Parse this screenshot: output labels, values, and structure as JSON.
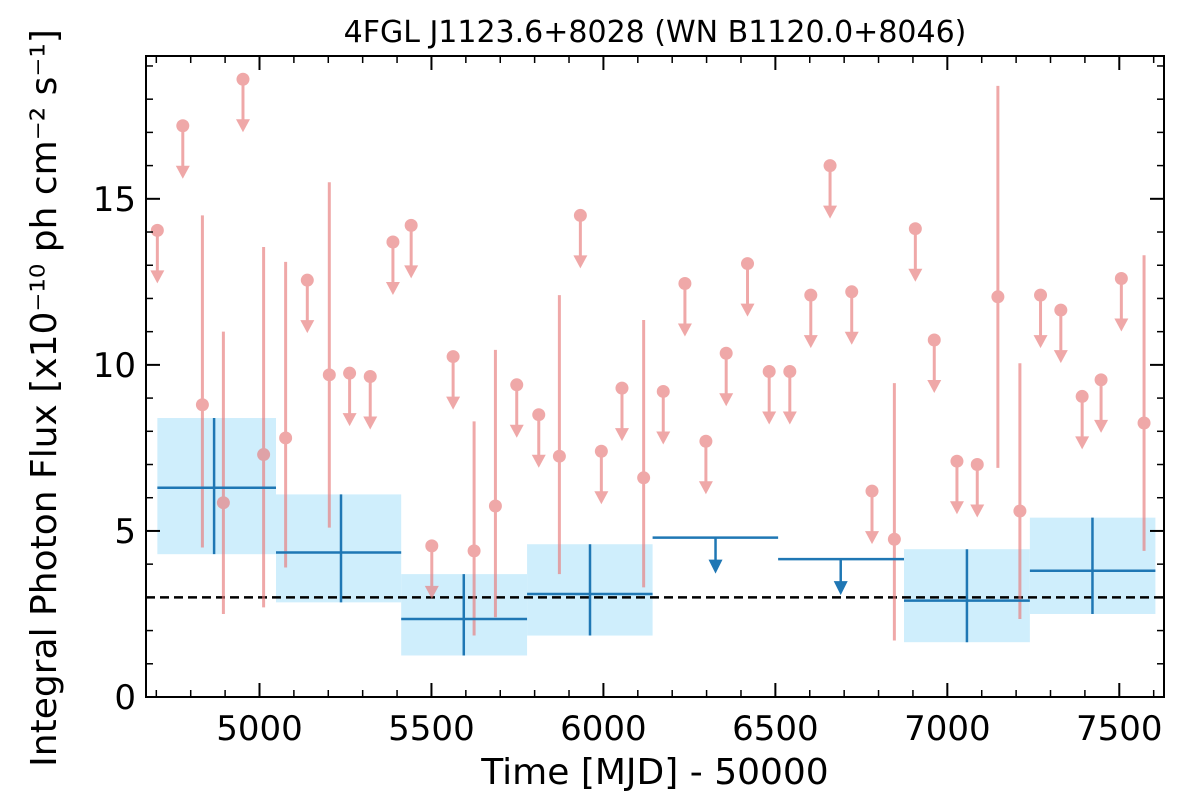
{
  "chart_data": {
    "type": "scatter",
    "title": "4FGL J1123.6+8028 (WN B1120.0+8046)",
    "xlabel": "Time [MJD] - 50000",
    "ylabel": "Integral Photon Flux [x10⁻¹⁰ ph cm⁻² s⁻¹]",
    "xlim": [
      4670,
      7630
    ],
    "ylim": [
      0,
      19.3
    ],
    "xticks": [
      5000,
      5500,
      6000,
      6500,
      7000,
      7500
    ],
    "xtick_labels": [
      "5000",
      "5500",
      "6000",
      "6500",
      "7000",
      "7500"
    ],
    "yticks": [
      0,
      5,
      10,
      15
    ],
    "ytick_labels": [
      "0",
      "5",
      "10",
      "15"
    ],
    "grid": false,
    "reference_line": {
      "y": 3.0,
      "style": "dashed",
      "color": "#000000"
    },
    "colors": {
      "short_bins": "#e87b7b",
      "long_bins": "#1f77b4",
      "long_band": "#cfeefc"
    },
    "series": [
      {
        "bin": "short",
        "upper_limits": [
          {
            "x": 4703,
            "y": 14.05
          },
          {
            "x": 4777,
            "y": 17.2
          },
          {
            "x": 4952,
            "y": 18.6
          },
          {
            "x": 5139,
            "y": 12.55
          },
          {
            "x": 5262,
            "y": 9.75
          },
          {
            "x": 5322,
            "y": 9.65
          },
          {
            "x": 5388,
            "y": 13.7
          },
          {
            "x": 5441,
            "y": 14.2
          },
          {
            "x": 5501,
            "y": 4.55
          },
          {
            "x": 5563,
            "y": 10.25
          },
          {
            "x": 5748,
            "y": 9.4
          },
          {
            "x": 5812,
            "y": 8.5
          },
          {
            "x": 5933,
            "y": 14.5
          },
          {
            "x": 5994,
            "y": 7.4
          },
          {
            "x": 6054,
            "y": 9.3
          },
          {
            "x": 6174,
            "y": 9.2
          },
          {
            "x": 6237,
            "y": 12.45
          },
          {
            "x": 6298,
            "y": 7.7
          },
          {
            "x": 6357,
            "y": 10.35
          },
          {
            "x": 6419,
            "y": 13.05
          },
          {
            "x": 6482,
            "y": 9.8
          },
          {
            "x": 6542,
            "y": 9.8
          },
          {
            "x": 6603,
            "y": 12.1
          },
          {
            "x": 6659,
            "y": 16.0
          },
          {
            "x": 6722,
            "y": 12.2
          },
          {
            "x": 6781,
            "y": 6.2
          },
          {
            "x": 6907,
            "y": 14.1
          },
          {
            "x": 6962,
            "y": 10.75
          },
          {
            "x": 7028,
            "y": 7.1
          },
          {
            "x": 7087,
            "y": 7.0
          },
          {
            "x": 7271,
            "y": 12.1
          },
          {
            "x": 7330,
            "y": 11.65
          },
          {
            "x": 7392,
            "y": 9.05
          },
          {
            "x": 7447,
            "y": 9.55
          },
          {
            "x": 7506,
            "y": 12.6
          }
        ],
        "detections": [
          {
            "x": 4834,
            "y": 8.8,
            "ylow": 4.5,
            "yhigh": 14.5
          },
          {
            "x": 4895,
            "y": 5.85,
            "ylow": 2.5,
            "yhigh": 11.0
          },
          {
            "x": 5012,
            "y": 7.3,
            "ylow": 2.7,
            "yhigh": 13.55
          },
          {
            "x": 5076,
            "y": 7.8,
            "ylow": 3.9,
            "yhigh": 13.1
          },
          {
            "x": 5203,
            "y": 9.7,
            "ylow": 5.1,
            "yhigh": 15.5
          },
          {
            "x": 5624,
            "y": 4.4,
            "ylow": 1.85,
            "yhigh": 8.3
          },
          {
            "x": 5686,
            "y": 5.75,
            "ylow": 2.4,
            "yhigh": 10.45
          },
          {
            "x": 5872,
            "y": 7.25,
            "ylow": 3.7,
            "yhigh": 12.1
          },
          {
            "x": 6117,
            "y": 6.6,
            "ylow": 3.3,
            "yhigh": 11.35
          },
          {
            "x": 6846,
            "y": 4.75,
            "ylow": 1.7,
            "yhigh": 9.45
          },
          {
            "x": 7147,
            "y": 12.05,
            "ylow": 6.9,
            "yhigh": 18.4
          },
          {
            "x": 7211,
            "y": 5.6,
            "ylow": 2.35,
            "yhigh": 10.05
          },
          {
            "x": 7572,
            "y": 8.25,
            "ylow": 4.4,
            "yhigh": 13.3
          }
        ]
      },
      {
        "bin": "long",
        "detections": [
          {
            "x": 4868,
            "x0": 4703,
            "x1": 5048,
            "y": 6.3,
            "ylow": 4.3,
            "yhigh": 8.4
          },
          {
            "x": 5237,
            "x0": 5048,
            "x1": 5412,
            "y": 4.35,
            "ylow": 2.85,
            "yhigh": 6.1
          },
          {
            "x": 5594,
            "x0": 5412,
            "x1": 5778,
            "y": 2.35,
            "ylow": 1.25,
            "yhigh": 3.7
          },
          {
            "x": 5961,
            "x0": 5778,
            "x1": 6143,
            "y": 3.1,
            "ylow": 1.85,
            "yhigh": 4.6
          },
          {
            "x": 7057,
            "x0": 6874,
            "x1": 7240,
            "y": 2.9,
            "ylow": 1.65,
            "yhigh": 4.45
          },
          {
            "x": 7422,
            "x0": 7240,
            "x1": 7605,
            "y": 3.8,
            "ylow": 2.5,
            "yhigh": 5.4
          }
        ],
        "upper_limits": [
          {
            "x": 6326,
            "x0": 6143,
            "x1": 6508,
            "y": 4.8
          },
          {
            "x": 6690,
            "x0": 6508,
            "x1": 6874,
            "y": 4.15
          }
        ]
      }
    ]
  }
}
